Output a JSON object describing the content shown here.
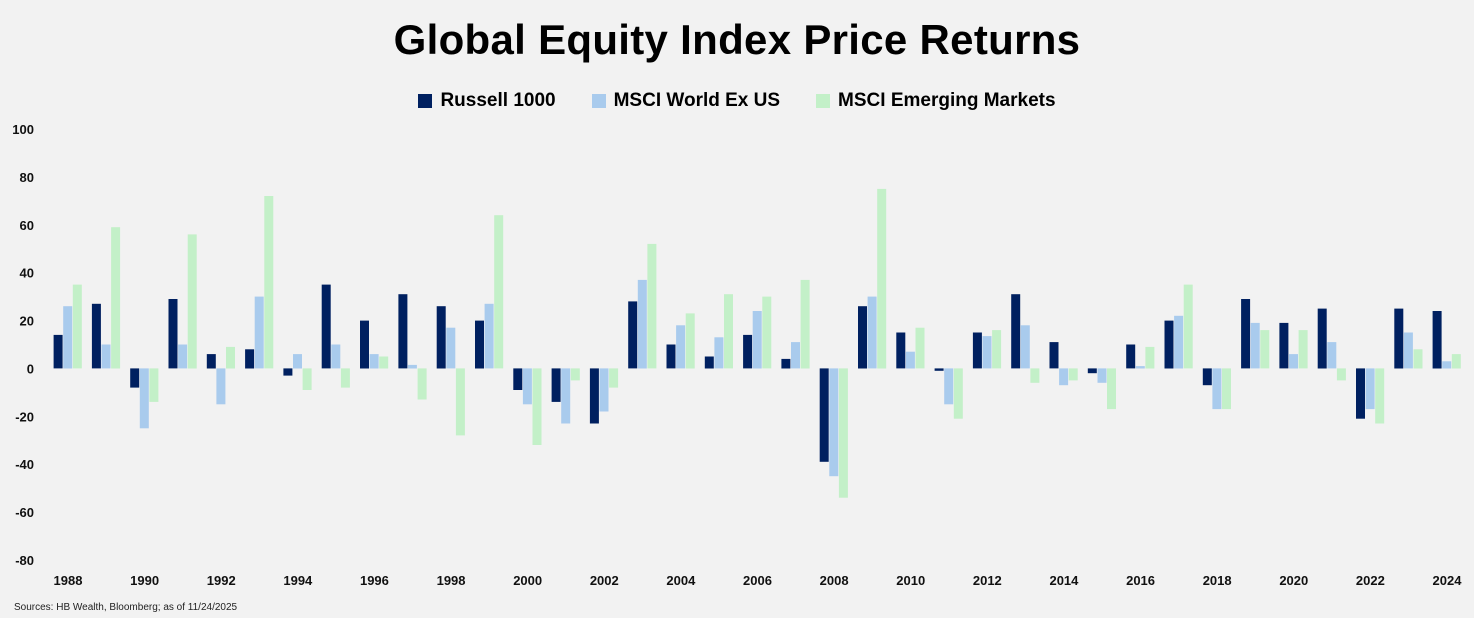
{
  "chart_data": {
    "type": "bar",
    "title": "Global Equity Index Price Returns",
    "xlabel": "",
    "ylabel": "",
    "ylim": [
      -80,
      100
    ],
    "yticks": [
      100,
      80,
      60,
      40,
      20,
      0,
      -20,
      -40,
      -60,
      -80
    ],
    "grid": false,
    "legend_position": "top",
    "categories": [
      1988,
      1989,
      1990,
      1991,
      1992,
      1993,
      1994,
      1995,
      1996,
      1997,
      1998,
      1999,
      2000,
      2001,
      2002,
      2003,
      2004,
      2005,
      2006,
      2007,
      2008,
      2009,
      2010,
      2011,
      2012,
      2013,
      2014,
      2015,
      2016,
      2017,
      2018,
      2019,
      2020,
      2021,
      2022,
      2023,
      2024
    ],
    "xtick_labels": [
      "1988",
      "1990",
      "1992",
      "1994",
      "1996",
      "1998",
      "2000",
      "2002",
      "2004",
      "2006",
      "2008",
      "2010",
      "2012",
      "2014",
      "2016",
      "2018",
      "2020",
      "2022",
      "2024"
    ],
    "series": [
      {
        "name": "Russell 1000",
        "color": "#002060",
        "values": [
          14,
          27,
          -8,
          29,
          6,
          8,
          -3,
          35,
          20,
          31,
          26,
          20,
          -9,
          -14,
          -23,
          28,
          10,
          5,
          14,
          4,
          -39,
          26,
          15,
          -1,
          15,
          31,
          11,
          -2,
          10,
          20,
          -7,
          29,
          19,
          25,
          -21,
          25,
          24
        ]
      },
      {
        "name": "MSCI World Ex US",
        "color": "#a9cbed",
        "values": [
          26,
          10,
          -25,
          10,
          -15,
          30,
          6,
          10,
          6,
          1.5,
          17,
          27,
          -15,
          -23,
          -18,
          37,
          18,
          13,
          24,
          11,
          -45,
          30,
          7,
          -15,
          13.5,
          18,
          -7,
          -6,
          1,
          22,
          -17,
          19,
          6,
          11,
          -17,
          15,
          3
        ]
      },
      {
        "name": "MSCI Emerging Markets",
        "color": "#c3f0c8",
        "values": [
          35,
          59,
          -14,
          56,
          9,
          72,
          -9,
          -8,
          5,
          -13,
          -28,
          64,
          -32,
          -5,
          -8,
          52,
          23,
          31,
          30,
          37,
          -54,
          75,
          17,
          -21,
          16,
          -6,
          -5,
          -17,
          9,
          35,
          -17,
          16,
          16,
          -5,
          -23,
          8,
          6
        ]
      }
    ]
  },
  "source": "Sources: HB Wealth, Bloomberg; as of 11/24/2025"
}
